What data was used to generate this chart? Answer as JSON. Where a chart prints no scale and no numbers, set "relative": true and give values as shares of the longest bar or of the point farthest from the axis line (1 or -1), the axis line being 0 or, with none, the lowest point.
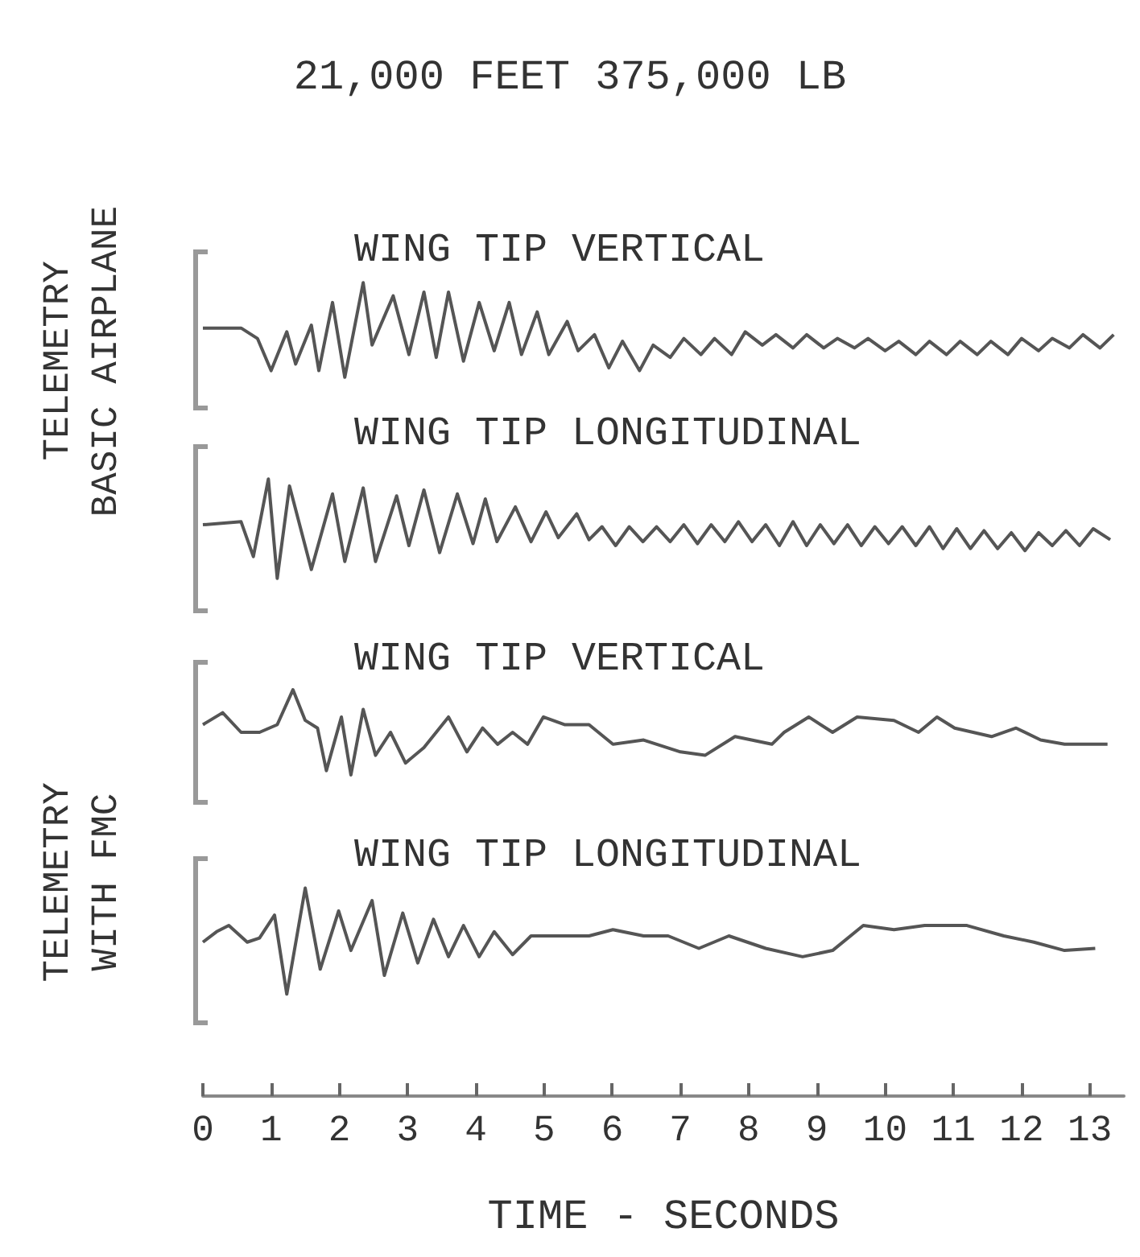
{
  "chart_data": [
    {
      "type": "line",
      "title": "21,000 FEET 375,000 LB",
      "subtitle": "WING TIP VERTICAL",
      "ylabel": "TELEMETRY\nBASIC AIRPLANE",
      "relative": true,
      "color": "#555555",
      "xlim": [
        0,
        13.5
      ],
      "tick_labels": false,
      "x": [
        0,
        0.56,
        0.8,
        1.0,
        1.23,
        1.36,
        1.59,
        1.7,
        1.9,
        2.08,
        2.35,
        2.48,
        2.79,
        3.02,
        3.24,
        3.42,
        3.6,
        3.82,
        4.05,
        4.27,
        4.49,
        4.67,
        4.9,
        5.07,
        5.34,
        5.5,
        5.74,
        5.95,
        6.15,
        6.4,
        6.6,
        6.85,
        7.05,
        7.3,
        7.5,
        7.75,
        7.95,
        8.2,
        8.4,
        8.65,
        8.85,
        9.1,
        9.3,
        9.55,
        9.75,
        10.0,
        10.2,
        10.45,
        10.65,
        10.9,
        11.1,
        11.35,
        11.55,
        11.8,
        12.0,
        12.25,
        12.45,
        12.7,
        12.9,
        13.15,
        13.35
      ],
      "values": [
        0.52,
        0.52,
        0.41,
        0.07,
        0.48,
        0.14,
        0.55,
        0.07,
        0.79,
        0,
        1,
        0.34,
        0.86,
        0.24,
        0.9,
        0.21,
        0.9,
        0.17,
        0.79,
        0.28,
        0.79,
        0.24,
        0.69,
        0.24,
        0.59,
        0.28,
        0.45,
        0.1,
        0.38,
        0.07,
        0.34,
        0.21,
        0.41,
        0.24,
        0.41,
        0.24,
        0.48,
        0.34,
        0.45,
        0.31,
        0.45,
        0.31,
        0.41,
        0.31,
        0.41,
        0.28,
        0.38,
        0.24,
        0.38,
        0.24,
        0.38,
        0.24,
        0.38,
        0.24,
        0.41,
        0.28,
        0.41,
        0.31,
        0.45,
        0.31,
        0.45
      ]
    },
    {
      "type": "line",
      "subtitle": "WING TIP LONGITUDINAL",
      "relative": true,
      "color": "#555555",
      "xlim": [
        0,
        13.5
      ],
      "tick_labels": false,
      "x": [
        0,
        0.56,
        0.74,
        0.96,
        1.09,
        1.27,
        1.59,
        1.9,
        2.08,
        2.35,
        2.53,
        2.84,
        3.02,
        3.24,
        3.47,
        3.73,
        3.96,
        4.14,
        4.31,
        4.58,
        4.81,
        5.03,
        5.21,
        5.48,
        5.66,
        5.85,
        6.05,
        6.25,
        6.45,
        6.65,
        6.85,
        7.05,
        7.25,
        7.45,
        7.65,
        7.85,
        8.05,
        8.25,
        8.45,
        8.65,
        8.85,
        9.05,
        9.25,
        9.45,
        9.65,
        9.85,
        10.05,
        10.25,
        10.45,
        10.65,
        10.85,
        11.05,
        11.25,
        11.45,
        11.65,
        11.85,
        12.05,
        12.25,
        12.45,
        12.65,
        12.85,
        13.05,
        13.3
      ],
      "values": [
        0.54,
        0.57,
        0.22,
        1,
        0,
        0.93,
        0.09,
        0.85,
        0.17,
        0.91,
        0.17,
        0.83,
        0.33,
        0.89,
        0.26,
        0.85,
        0.35,
        0.8,
        0.37,
        0.72,
        0.37,
        0.67,
        0.41,
        0.65,
        0.39,
        0.52,
        0.33,
        0.52,
        0.37,
        0.52,
        0.37,
        0.54,
        0.35,
        0.54,
        0.37,
        0.57,
        0.37,
        0.54,
        0.33,
        0.57,
        0.33,
        0.54,
        0.35,
        0.54,
        0.33,
        0.52,
        0.35,
        0.52,
        0.33,
        0.52,
        0.3,
        0.5,
        0.3,
        0.48,
        0.3,
        0.46,
        0.28,
        0.46,
        0.33,
        0.48,
        0.33,
        0.5,
        0.39
      ]
    },
    {
      "type": "line",
      "subtitle": "WING TIP VERTICAL",
      "ylabel": "TELEMETRY\nWITH FMC",
      "relative": true,
      "color": "#555555",
      "xlim": [
        0,
        13.5
      ],
      "tick_labels": false,
      "x": [
        0,
        0.29,
        0.56,
        0.83,
        1.09,
        1.32,
        1.5,
        1.68,
        1.81,
        2.03,
        2.17,
        2.35,
        2.53,
        2.75,
        2.97,
        3.24,
        3.6,
        3.87,
        4.1,
        4.32,
        4.54,
        4.76,
        4.99,
        5.3,
        5.66,
        6.01,
        6.46,
        7.0,
        7.36,
        7.8,
        8.34,
        8.52,
        8.88,
        9.23,
        9.59,
        10.13,
        10.49,
        10.76,
        11.02,
        11.56,
        11.92,
        12.28,
        12.63,
        13.26
      ],
      "values": [
        0.59,
        0.73,
        0.5,
        0.5,
        0.59,
        1,
        0.64,
        0.55,
        0.05,
        0.68,
        0,
        0.77,
        0.23,
        0.5,
        0.14,
        0.32,
        0.68,
        0.27,
        0.55,
        0.36,
        0.5,
        0.36,
        0.68,
        0.59,
        0.59,
        0.36,
        0.41,
        0.27,
        0.23,
        0.45,
        0.36,
        0.5,
        0.68,
        0.5,
        0.68,
        0.64,
        0.5,
        0.68,
        0.55,
        0.45,
        0.55,
        0.41,
        0.36,
        0.36
      ]
    },
    {
      "type": "line",
      "subtitle": "WING TIP LONGITUDINAL",
      "xlabel": "TIME - SECONDS",
      "relative": true,
      "color": "#555555",
      "xlim": [
        0,
        13.5
      ],
      "xticks": [
        0,
        1,
        2,
        3,
        4,
        5,
        6,
        7,
        8,
        9,
        10,
        11,
        12,
        13
      ],
      "tick_labels": "x",
      "x": [
        0,
        0.2,
        0.38,
        0.65,
        0.83,
        1.05,
        1.23,
        1.5,
        1.72,
        1.99,
        2.17,
        2.48,
        2.66,
        2.93,
        3.15,
        3.38,
        3.6,
        3.82,
        4.05,
        4.27,
        4.54,
        4.81,
        5.12,
        5.66,
        6.01,
        6.46,
        6.82,
        7.27,
        7.71,
        8.25,
        8.79,
        9.23,
        9.68,
        10.13,
        10.58,
        11.2,
        11.74,
        12.18,
        12.63,
        13.08
      ],
      "values": [
        0.74,
        0.79,
        0.82,
        0.74,
        0.76,
        0.87,
        0.49,
        1,
        0.61,
        0.89,
        0.7,
        0.94,
        0.58,
        0.88,
        0.64,
        0.85,
        0.67,
        0.82,
        0.67,
        0.79,
        0.68,
        0.77,
        0.77,
        0.77,
        0.8,
        0.77,
        0.77,
        0.71,
        0.77,
        0.71,
        0.67,
        0.7,
        0.82,
        0.8,
        0.82,
        0.82,
        0.77,
        0.74,
        0.7,
        0.71
      ]
    }
  ]
}
